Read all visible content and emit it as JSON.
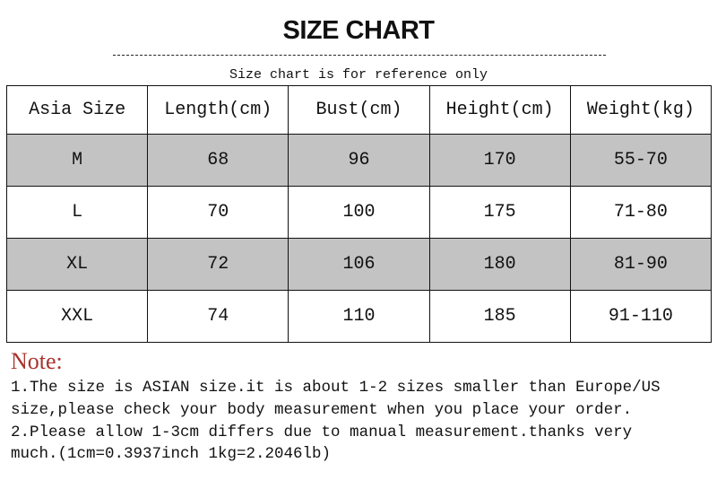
{
  "title": "SIZE CHART",
  "subtitle": "Size chart is for reference only",
  "table": {
    "headers": [
      "Asia Size",
      "Length(cm)",
      "Bust(cm)",
      "Height(cm)",
      "Weight(kg)"
    ],
    "rows": [
      [
        "M",
        "68",
        "96",
        "170",
        "55-70"
      ],
      [
        "L",
        "70",
        "100",
        "175",
        "71-80"
      ],
      [
        "XL",
        "72",
        "106",
        "180",
        "81-90"
      ],
      [
        "XXL",
        "74",
        "110",
        "185",
        "91-110"
      ]
    ]
  },
  "note": {
    "title": "Note:",
    "lines": [
      "1.The size is ASIAN size.it is about 1-2 sizes smaller than Europe/US",
      "size,please check your body measurement when you place your order.",
      "2.Please allow 1-3cm differs due to manual measurement.thanks very",
      "much.(1cm=0.3937inch 1kg=2.2046lb)"
    ]
  },
  "colors": {
    "shaded_row": "#c3c3c3",
    "note_title": "#a8332f"
  }
}
